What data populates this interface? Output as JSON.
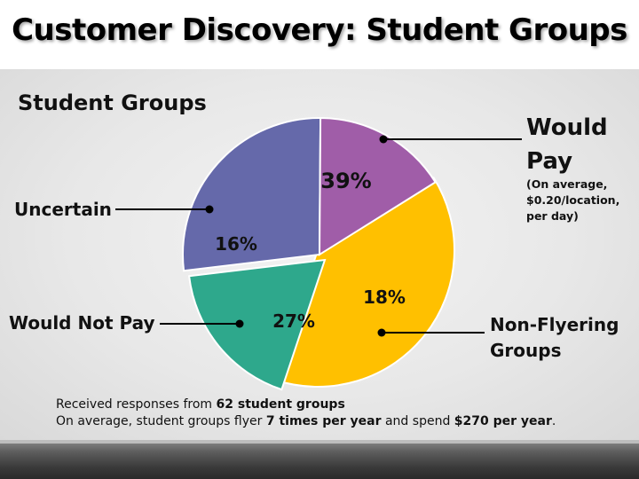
{
  "slide": {
    "title": "Customer Discovery: Student Groups"
  },
  "chart_data": {
    "type": "pie",
    "title": "Student Groups",
    "slices": [
      {
        "label": "Would Pay",
        "value": 39,
        "display": "39%",
        "color": "#FFC000",
        "exploded": true,
        "note": [
          "(On average,",
          "$0.20/location,",
          "per day)"
        ]
      },
      {
        "label": "Non-Flyering Groups",
        "label_lines": [
          "Non-Flyering",
          "Groups"
        ],
        "value": 18,
        "display": "18%",
        "color": "#2EA88C",
        "exploded": true
      },
      {
        "label": "Would Not Pay",
        "value": 27,
        "display": "27%",
        "color": "#6569AA",
        "exploded": false
      },
      {
        "label": "Uncertain",
        "value": 16,
        "display": "16%",
        "color": "#A05DA8",
        "exploded": false
      }
    ]
  },
  "notes": {
    "line1_prefix": "Received responses from ",
    "line1_bold": "62 student groups",
    "line2_prefix": "On average, student groups flyer ",
    "line2_bold1": "7 times per year",
    "line2_mid": " and spend ",
    "line2_bold2": "$270 per year",
    "line2_suffix": "."
  }
}
